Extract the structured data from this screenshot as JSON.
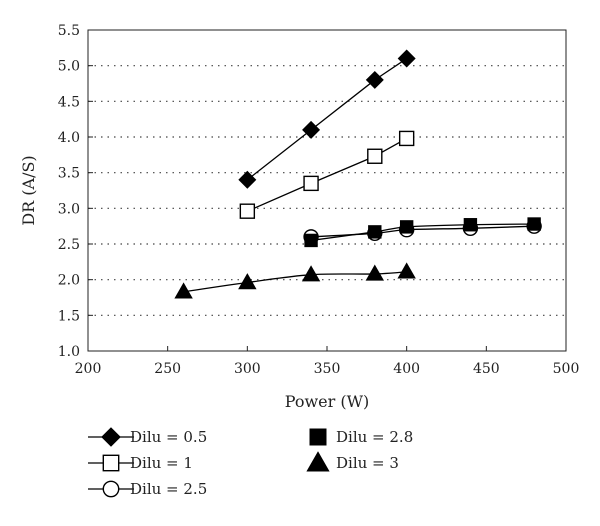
{
  "chart_data": {
    "type": "scatter",
    "title": "",
    "xlabel": "Power (W)",
    "ylabel": "DR (A/S)",
    "xlim": [
      200,
      500
    ],
    "ylim": [
      1.0,
      5.5
    ],
    "xticks": [
      200,
      250,
      300,
      350,
      400,
      450,
      500
    ],
    "yticks": [
      1.0,
      1.5,
      2.0,
      2.5,
      3.0,
      3.5,
      4.0,
      4.5,
      5.0,
      5.5
    ],
    "xtick_labels": [
      "200",
      "250",
      "300",
      "350",
      "400",
      "450",
      "500"
    ],
    "ytick_labels": [
      "1.0",
      "1.5",
      "2.0",
      "2.5",
      "3.0",
      "3.5",
      "4.0",
      "4.5",
      "5.0",
      "5.5"
    ],
    "grid": "horizontal dotted",
    "legend_position": "bottom",
    "series": [
      {
        "name": "Dilu = 0.5",
        "marker": "diamond-filled",
        "x": [
          300,
          340,
          380,
          400
        ],
        "y": [
          3.4,
          4.1,
          4.8,
          5.1
        ],
        "fit": "linear"
      },
      {
        "name": "Dilu = 1",
        "marker": "square-open",
        "x": [
          300,
          340,
          380,
          400
        ],
        "y": [
          2.96,
          3.35,
          3.73,
          3.98
        ],
        "fit": "linear"
      },
      {
        "name": "Dilu = 2.5",
        "marker": "circle-open",
        "x": [
          340,
          380,
          400,
          440,
          480
        ],
        "y": [
          2.6,
          2.65,
          2.7,
          2.72,
          2.75
        ],
        "fit": "curve"
      },
      {
        "name": "Dilu = 2.8",
        "marker": "square-filled",
        "x": [
          340,
          380,
          400,
          440,
          480
        ],
        "y": [
          2.55,
          2.67,
          2.74,
          2.77,
          2.78
        ],
        "fit": "curve"
      },
      {
        "name": "Dilu = 3",
        "marker": "triangle-filled",
        "x": [
          260,
          300,
          340,
          380,
          400
        ],
        "y": [
          1.83,
          1.96,
          2.07,
          2.08,
          2.11
        ],
        "fit": "curve"
      }
    ]
  }
}
